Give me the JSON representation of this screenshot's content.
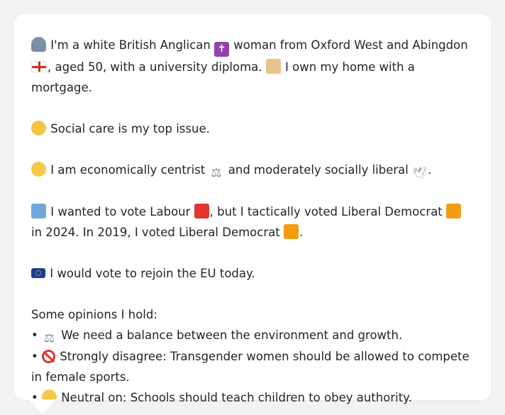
{
  "profile": {
    "intro": {
      "part1": "I'm a white British Anglican",
      "part2": "woman from Oxford West and Abingdon",
      "part3": ", aged 50, with a university diploma.",
      "part4": "I own my home with a mortgage."
    },
    "top_issue": "Social care is my top issue.",
    "ideology": {
      "part1": "I am economically centrist",
      "part2": "and moderately socially liberal",
      "part3": "."
    },
    "vote": {
      "part1": "I wanted to vote Labour",
      "part2": ", but I tactically voted Liberal Democrat",
      "part3": "in 2024. In 2019, I voted Liberal Democrat",
      "part4": "."
    },
    "eu": "I would vote to rejoin the EU today.",
    "opinions_heading": "Some opinions I hold:",
    "opinions": [
      {
        "bullet": "•",
        "icon": "balance-scale-icon",
        "text": "We need a balance between the environment and growth."
      },
      {
        "bullet": "•",
        "icon": "prohibited-icon",
        "text": "Strongly disagree: Transgender women should be allowed to compete in female sports."
      },
      {
        "bullet": "•",
        "icon": "neutral-face-icon",
        "text": "Neutral on: Schools should teach children to obey authority."
      }
    ]
  },
  "icons": {
    "person": "person-silhouette-icon",
    "religion": "latin-cross-icon",
    "flag": "england-flag-icon",
    "home": "house-icon",
    "issue": "handshake-icon",
    "ideology": "thinking-face-icon",
    "economic": "balance-scale-icon",
    "social": "dove-icon",
    "ballot": "ballot-box-icon",
    "labour": "red-square-icon",
    "libdem": "orange-square-icon",
    "eu": "eu-flag-icon"
  },
  "colors": {
    "labour": "#e3342f",
    "libdem": "#f39c12",
    "card_bg": "#ffffff",
    "page_bg": "#f1f2f4",
    "text": "#1f2328"
  }
}
